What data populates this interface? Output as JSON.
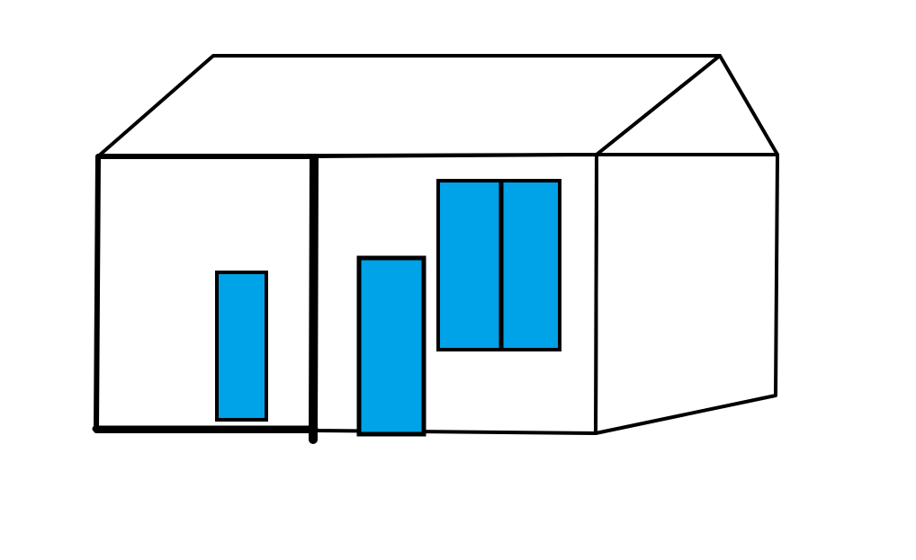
{
  "drawing": {
    "subject": "house",
    "colors": {
      "background": "#ffffff",
      "outline": "#000000",
      "window_fill": "#00a2e8"
    },
    "parts": {
      "roof": {
        "icon": "roof-shape"
      },
      "gable": {
        "icon": "gable-triangle"
      },
      "front_wall_left": {
        "icon": "wall-section"
      },
      "front_wall_right": {
        "icon": "wall-section"
      },
      "side_wall": {
        "icon": "wall-section"
      },
      "left_window": {
        "icon": "window-icon"
      },
      "door": {
        "icon": "door-icon"
      },
      "double_window": {
        "icon": "window-icon",
        "panes": 2
      }
    }
  }
}
